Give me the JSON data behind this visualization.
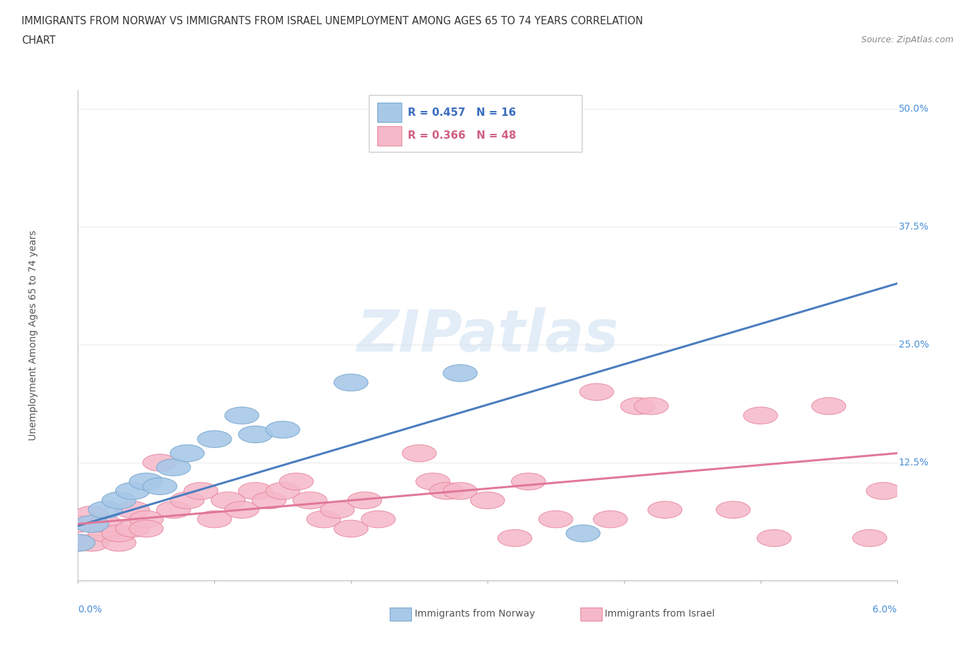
{
  "title_line1": "IMMIGRANTS FROM NORWAY VS IMMIGRANTS FROM ISRAEL UNEMPLOYMENT AMONG AGES 65 TO 74 YEARS CORRELATION",
  "title_line2": "CHART",
  "source": "Source: ZipAtlas.com",
  "ylabel": "Unemployment Among Ages 65 to 74 years",
  "xlim": [
    0.0,
    0.06
  ],
  "ylim": [
    0.0,
    0.52
  ],
  "ytick_vals": [
    0.125,
    0.25,
    0.375,
    0.5
  ],
  "ytick_labels": [
    "12.5%",
    "25.0%",
    "37.5%",
    "50.0%"
  ],
  "watermark": "ZIPatlas",
  "norway_color": "#A8C8E8",
  "norway_edge": "#7AAAD0",
  "israel_color": "#F5B8C8",
  "israel_edge": "#E888A0",
  "norway_line_color": "#4A7DC0",
  "israel_line_color": "#E07898",
  "norway_R": 0.457,
  "norway_N": 16,
  "israel_R": 0.366,
  "israel_N": 48,
  "norway_scatter_x": [
    0.0,
    0.001,
    0.002,
    0.003,
    0.004,
    0.005,
    0.006,
    0.007,
    0.008,
    0.01,
    0.012,
    0.013,
    0.015,
    0.02,
    0.028,
    0.037
  ],
  "norway_scatter_y": [
    0.04,
    0.06,
    0.075,
    0.085,
    0.095,
    0.105,
    0.1,
    0.12,
    0.135,
    0.15,
    0.175,
    0.155,
    0.16,
    0.21,
    0.22,
    0.05
  ],
  "israel_scatter_x": [
    0.0,
    0.0,
    0.001,
    0.001,
    0.002,
    0.002,
    0.003,
    0.003,
    0.004,
    0.004,
    0.005,
    0.005,
    0.006,
    0.007,
    0.008,
    0.009,
    0.01,
    0.011,
    0.012,
    0.013,
    0.014,
    0.015,
    0.016,
    0.017,
    0.018,
    0.019,
    0.02,
    0.021,
    0.022,
    0.025,
    0.026,
    0.027,
    0.028,
    0.03,
    0.032,
    0.033,
    0.035,
    0.038,
    0.039,
    0.041,
    0.042,
    0.043,
    0.048,
    0.05,
    0.051,
    0.055,
    0.058,
    0.059
  ],
  "israel_scatter_y": [
    0.04,
    0.06,
    0.04,
    0.07,
    0.05,
    0.06,
    0.04,
    0.05,
    0.055,
    0.075,
    0.065,
    0.055,
    0.125,
    0.075,
    0.085,
    0.095,
    0.065,
    0.085,
    0.075,
    0.095,
    0.085,
    0.095,
    0.105,
    0.085,
    0.065,
    0.075,
    0.055,
    0.085,
    0.065,
    0.135,
    0.105,
    0.095,
    0.095,
    0.085,
    0.045,
    0.105,
    0.065,
    0.2,
    0.065,
    0.185,
    0.185,
    0.075,
    0.075,
    0.175,
    0.045,
    0.185,
    0.045,
    0.095
  ],
  "norway_trend_x": [
    0.0,
    0.06
  ],
  "norway_trend_y": [
    0.058,
    0.315
  ],
  "israel_trend_y": [
    0.06,
    0.135
  ],
  "background_color": "#FFFFFF",
  "grid_color": "#CCCCCC",
  "axis_label_color": "#4A90D9",
  "title_color": "#333333",
  "legend_font_color_norway": "#3A6EBF",
  "legend_font_color_israel": "#D06080"
}
